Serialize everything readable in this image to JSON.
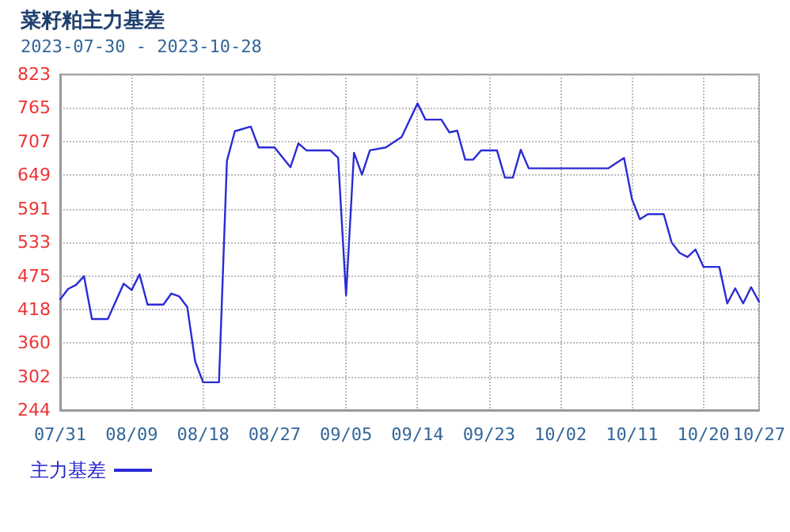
{
  "chart_data": {
    "type": "line",
    "title": "菜籽粕主力基差",
    "subtitle": "2023-07-30 - 2023-10-28",
    "x": [
      "2023-07-31",
      "2023-08-01",
      "2023-08-02",
      "2023-08-03",
      "2023-08-04",
      "2023-08-06",
      "2023-08-08",
      "2023-08-09",
      "2023-08-10",
      "2023-08-11",
      "2023-08-13",
      "2023-08-14",
      "2023-08-15",
      "2023-08-16",
      "2023-08-17",
      "2023-08-18",
      "2023-08-20",
      "2023-08-21",
      "2023-08-22",
      "2023-08-24",
      "2023-08-25",
      "2023-08-27",
      "2023-08-29",
      "2023-08-30",
      "2023-08-31",
      "2023-09-03",
      "2023-09-04",
      "2023-09-05",
      "2023-09-06",
      "2023-09-07",
      "2023-09-08",
      "2023-09-10",
      "2023-09-12",
      "2023-09-14",
      "2023-09-15",
      "2023-09-17",
      "2023-09-18",
      "2023-09-19",
      "2023-09-20",
      "2023-09-21",
      "2023-09-22",
      "2023-09-24",
      "2023-09-25",
      "2023-09-26",
      "2023-09-27",
      "2023-09-28",
      "2023-10-08",
      "2023-10-10",
      "2023-10-11",
      "2023-10-12",
      "2023-10-13",
      "2023-10-15",
      "2023-10-16",
      "2023-10-17",
      "2023-10-18",
      "2023-10-19",
      "2023-10-20",
      "2023-10-22",
      "2023-10-23",
      "2023-10-24",
      "2023-10-25",
      "2023-10-26",
      "2023-10-27"
    ],
    "series": [
      {
        "name": "主力基差",
        "color": "#2b2bd6",
        "values": [
          435,
          453,
          460,
          475,
          401,
          401,
          462,
          451,
          478,
          426,
          426,
          445,
          440,
          422,
          328,
          292,
          292,
          674,
          725,
          733,
          697,
          697,
          663,
          704,
          692,
          692,
          679,
          442,
          688,
          650,
          692,
          697,
          715,
          773,
          745,
          745,
          723,
          726,
          676,
          676,
          692,
          692,
          645,
          645,
          693,
          661,
          661,
          679,
          608,
          573,
          582,
          582,
          533,
          515,
          508,
          521,
          491,
          491,
          428,
          454,
          428,
          456,
          431
        ]
      }
    ],
    "xlim": [
      "2023-07-31",
      "2023-10-27"
    ],
    "xticks": [
      {
        "value": "2023-07-31",
        "label": "07/31"
      },
      {
        "value": "2023-08-09",
        "label": "08/09"
      },
      {
        "value": "2023-08-18",
        "label": "08/18"
      },
      {
        "value": "2023-08-27",
        "label": "08/27"
      },
      {
        "value": "2023-09-05",
        "label": "09/05"
      },
      {
        "value": "2023-09-14",
        "label": "09/14"
      },
      {
        "value": "2023-09-23",
        "label": "09/23"
      },
      {
        "value": "2023-10-02",
        "label": "10/02"
      },
      {
        "value": "2023-10-11",
        "label": "10/11"
      },
      {
        "value": "2023-10-20",
        "label": "10/20"
      },
      {
        "value": "2023-10-27",
        "label": "10/27"
      }
    ],
    "ylim": [
      244,
      823
    ],
    "yticks": [
      244,
      302,
      360,
      418,
      475,
      533,
      591,
      649,
      707,
      765,
      823
    ],
    "grid": true,
    "legend": "bottom left",
    "marker": "none",
    "line_style": "solid"
  }
}
